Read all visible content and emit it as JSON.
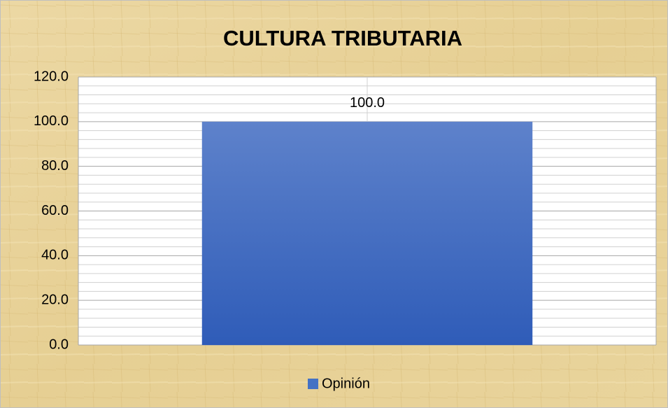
{
  "chart_data": {
    "type": "bar",
    "title": "CULTURA TRIBUTARIA",
    "categories": [
      null
    ],
    "series": [
      {
        "name": "Opinión",
        "color": "#4472c4",
        "values": [
          100
        ],
        "value_labels": [
          "100.0"
        ]
      }
    ],
    "ylim": [
      0,
      120
    ],
    "yticks": [
      {
        "value": 0,
        "label": "0.0"
      },
      {
        "value": 20,
        "label": "20.0"
      },
      {
        "value": 40,
        "label": "40.0"
      },
      {
        "value": 60,
        "label": "60.0"
      },
      {
        "value": 80,
        "label": "80.0"
      },
      {
        "value": 100,
        "label": "100.0"
      },
      {
        "value": 120,
        "label": "120.0"
      }
    ],
    "minor_yticks": [
      4,
      8,
      12,
      16,
      24,
      28,
      32,
      36,
      44,
      48,
      52,
      56,
      64,
      68,
      72,
      76,
      84,
      88,
      92,
      96,
      104,
      108,
      112,
      116
    ],
    "grid": true,
    "legend": "bottom"
  }
}
